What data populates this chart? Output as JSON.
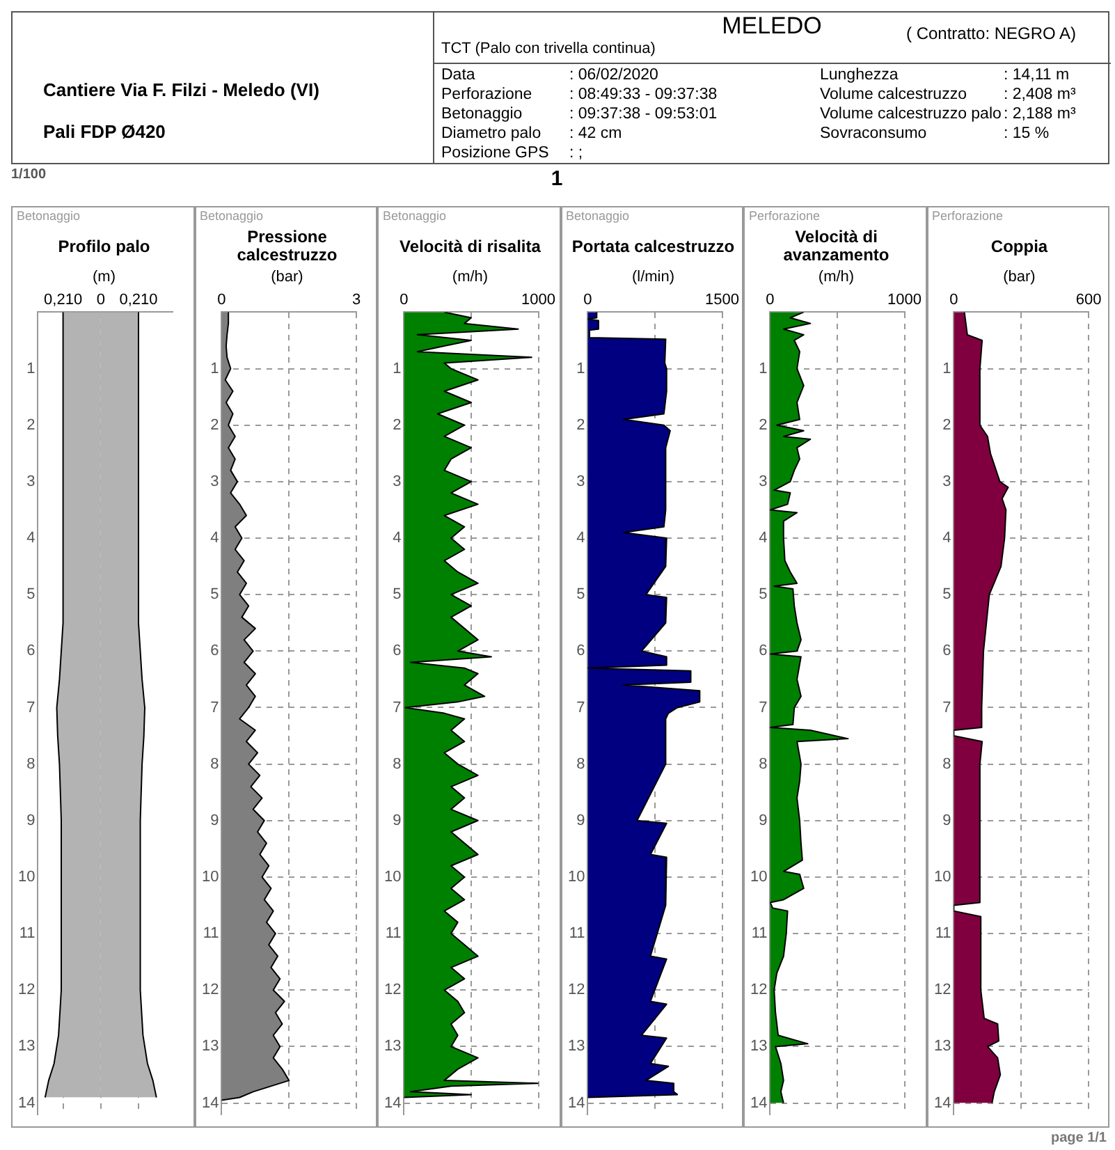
{
  "chart_data": [
    {
      "type": "other",
      "title": "MELEDO",
      "subtitle": "TCT (Palo con trivella continua)",
      "annotations": [
        "Cantiere Via F. Filzi - Meledo (VI)",
        "Pali FDP Ø420",
        "( Contratto: NEGRO A)",
        "Data",
        ": 06/02/2020",
        "Perforazione",
        ": 08:49:33 - 09:37:38",
        "Betonaggio",
        ": 09:37:38 - 09:53:01",
        "Diametro palo",
        ": 42 cm",
        "Posizione GPS",
        ": ;",
        "Lunghezza",
        ": 14,11 m",
        "Volume calcestruzzo",
        ": 2,408 m³",
        "Volume calcestruzzo palo",
        ": 2,188 m³",
        "Sovraconsumo",
        ": 15 %",
        "1/100",
        "1",
        "page 1/1"
      ]
    },
    {
      "type": "area",
      "orientation": "horizontal",
      "subtitle": "Betonaggio",
      "title": "Profilo palo",
      "xlabel": "(m)",
      "xlim": [
        -0.35,
        0.4
      ],
      "xticks": [
        {
          "value": -0.21,
          "label": "0,210"
        },
        0,
        {
          "value": 0.21,
          "label": "0,210"
        }
      ],
      "ylim": [
        14.2,
        0
      ],
      "yticks": [
        1,
        2,
        3,
        4,
        5,
        6,
        7,
        8,
        9,
        10,
        11,
        12,
        13,
        14
      ],
      "grid": "x",
      "series": [
        {
          "color": "#b3b3b3",
          "x": [
            0,
            5.5,
            6.5,
            7,
            7.5,
            8,
            9,
            12,
            12.8,
            13.3,
            13.6,
            13.9
          ],
          "values": [
            -0.21,
            -0.21,
            -0.23,
            -0.245,
            -0.24,
            -0.23,
            -0.22,
            -0.22,
            -0.235,
            -0.26,
            -0.29,
            -0.31
          ]
        },
        {
          "color": "#b3b3b3",
          "x": [
            0,
            5.5,
            6.5,
            7,
            7.5,
            8,
            9,
            12,
            12.8,
            13.3,
            13.6,
            13.9
          ],
          "values": [
            0.21,
            0.21,
            0.23,
            0.245,
            0.24,
            0.23,
            0.22,
            0.22,
            0.235,
            0.26,
            0.29,
            0.31
          ]
        }
      ]
    },
    {
      "type": "area",
      "orientation": "horizontal",
      "subtitle": "Betonaggio",
      "title": "Pressione calcestruzzo",
      "xlabel": "(bar)",
      "xlim": [
        0,
        3
      ],
      "xticks": [
        0,
        {
          "value": 1.5,
          "label": null
        },
        3
      ],
      "ylim": [
        14.2,
        0
      ],
      "yticks": [
        1,
        2,
        3,
        4,
        5,
        6,
        7,
        8,
        9,
        10,
        11,
        12,
        13,
        14
      ],
      "grid": true,
      "series": [
        {
          "color": "#7f7f7f",
          "x": [
            0,
            0.2,
            0.4,
            0.6,
            0.8,
            1,
            1.2,
            1.4,
            1.6,
            1.8,
            2,
            2.2,
            2.4,
            2.6,
            2.8,
            3,
            3.2,
            3.4,
            3.6,
            3.8,
            4,
            4.2,
            4.4,
            4.6,
            4.8,
            5,
            5.2,
            5.4,
            5.6,
            5.8,
            6,
            6.2,
            6.4,
            6.6,
            6.8,
            7,
            7.2,
            7.4,
            7.6,
            7.8,
            8,
            8.2,
            8.4,
            8.6,
            8.8,
            9,
            9.2,
            9.4,
            9.6,
            9.8,
            10,
            10.2,
            10.4,
            10.6,
            10.8,
            11,
            11.2,
            11.4,
            11.6,
            11.8,
            12,
            12.2,
            12.4,
            12.6,
            12.8,
            13,
            13.2,
            13.4,
            13.6,
            13.8,
            13.9,
            13.95
          ],
          "values": [
            0.15,
            0.15,
            0.12,
            0.1,
            0.12,
            0.2,
            0.08,
            0.25,
            0.1,
            0.25,
            0.15,
            0.3,
            0.15,
            0.3,
            0.2,
            0.35,
            0.2,
            0.4,
            0.55,
            0.3,
            0.45,
            0.3,
            0.5,
            0.35,
            0.55,
            0.4,
            0.6,
            0.45,
            0.75,
            0.5,
            0.7,
            0.5,
            0.75,
            0.55,
            0.75,
            0.6,
            0.4,
            0.75,
            0.55,
            0.8,
            0.6,
            0.85,
            0.65,
            0.9,
            0.7,
            0.95,
            0.8,
            1,
            0.85,
            1.05,
            0.9,
            1.1,
            0.95,
            1.15,
            1,
            1.2,
            1.05,
            1.25,
            1.1,
            1.3,
            1.15,
            1.4,
            1.2,
            1.35,
            1.15,
            1.3,
            1.15,
            1.35,
            1.5,
            0.7,
            0.4,
            0
          ]
        }
      ]
    },
    {
      "type": "area",
      "orientation": "horizontal",
      "subtitle": "Betonaggio",
      "title": "Velocità di risalita",
      "xlabel": "(m/h)",
      "xlim": [
        0,
        1000
      ],
      "xticks": [
        0,
        {
          "value": 500,
          "label": null
        },
        1000
      ],
      "ylim": [
        14.2,
        0
      ],
      "yticks": [
        1,
        2,
        3,
        4,
        5,
        6,
        7,
        8,
        9,
        10,
        11,
        12,
        13,
        14
      ],
      "grid": true,
      "series": [
        {
          "color": "#008000",
          "x": [
            0,
            0.1,
            0.2,
            0.3,
            0.4,
            0.5,
            0.6,
            0.7,
            0.8,
            0.9,
            1,
            1.2,
            1.4,
            1.6,
            1.8,
            2,
            2.2,
            2.4,
            2.6,
            2.8,
            3,
            3.2,
            3.4,
            3.6,
            3.8,
            4,
            4.2,
            4.4,
            4.6,
            4.8,
            5,
            5.2,
            5.4,
            5.6,
            5.8,
            6,
            6.1,
            6.2,
            6.3,
            6.4,
            6.6,
            6.8,
            6.9,
            7,
            7.1,
            7.2,
            7.4,
            7.6,
            7.8,
            8,
            8.2,
            8.4,
            8.6,
            8.8,
            9,
            9.2,
            9.4,
            9.6,
            9.8,
            10,
            10.2,
            10.4,
            10.6,
            10.8,
            11,
            11.2,
            11.4,
            11.6,
            11.8,
            12,
            12.2,
            12.4,
            12.6,
            12.8,
            13,
            13.2,
            13.4,
            13.6,
            13.65,
            13.7,
            13.8,
            13.85,
            13.9
          ],
          "values": [
            300,
            500,
            450,
            850,
            100,
            500,
            300,
            100,
            950,
            300,
            350,
            550,
            300,
            500,
            250,
            450,
            300,
            500,
            350,
            300,
            500,
            350,
            550,
            300,
            450,
            350,
            450,
            300,
            400,
            550,
            350,
            500,
            350,
            450,
            550,
            400,
            650,
            50,
            450,
            550,
            450,
            600,
            400,
            10,
            300,
            450,
            350,
            450,
            300,
            400,
            550,
            350,
            450,
            350,
            550,
            350,
            450,
            550,
            350,
            450,
            350,
            450,
            300,
            400,
            350,
            450,
            550,
            350,
            450,
            300,
            400,
            450,
            350,
            400,
            350,
            550,
            400,
            300,
            1000,
            350,
            50,
            500,
            0
          ]
        }
      ]
    },
    {
      "type": "area",
      "orientation": "horizontal",
      "subtitle": "Betonaggio",
      "title": "Portata calcestruzzo",
      "xlabel": "(l/min)",
      "xlim": [
        0,
        1500
      ],
      "xticks": [
        0,
        {
          "value": 750,
          "label": null
        },
        1500
      ],
      "ylim": [
        14.2,
        0
      ],
      "yticks": [
        1,
        2,
        3,
        4,
        5,
        6,
        7,
        8,
        9,
        10,
        11,
        12,
        13,
        14
      ],
      "grid": true,
      "series": [
        {
          "color": "#000080",
          "x": [
            0,
            0.1,
            0.12,
            0.15,
            0.3,
            0.32,
            0.45,
            0.48,
            0.9,
            1,
            1.4,
            1.8,
            1.9,
            2,
            2.1,
            2.4,
            3,
            3.5,
            3.8,
            3.9,
            4,
            4.5,
            5,
            5.05,
            5.5,
            6,
            6.1,
            6.25,
            6.3,
            6.35,
            6.55,
            6.6,
            6.7,
            6.9,
            7,
            7.1,
            7.2,
            8,
            9,
            9.05,
            9.6,
            9.65,
            10.5,
            11.4,
            11.45,
            12.2,
            12.25,
            12.8,
            12.85,
            13.3,
            13.35,
            13.6,
            13.65,
            13.8,
            13.85,
            13.9
          ],
          "values": [
            100,
            100,
            0,
            120,
            120,
            20,
            20,
            870,
            860,
            880,
            880,
            850,
            400,
            850,
            920,
            870,
            870,
            870,
            850,
            400,
            880,
            870,
            650,
            880,
            870,
            600,
            880,
            880,
            0,
            1150,
            1150,
            400,
            1250,
            1250,
            1000,
            900,
            870,
            870,
            550,
            880,
            700,
            880,
            870,
            700,
            880,
            700,
            880,
            600,
            880,
            700,
            900,
            650,
            960,
            960,
            1000,
            0
          ]
        }
      ]
    },
    {
      "type": "area",
      "orientation": "horizontal",
      "subtitle": "Perforazione",
      "title": "Velocità di avanzamento",
      "xlabel": "(m/h)",
      "xlim": [
        0,
        1000
      ],
      "xticks": [
        0,
        {
          "value": 500,
          "label": null
        },
        1000
      ],
      "ylim": [
        14.2,
        0
      ],
      "yticks": [
        1,
        2,
        3,
        4,
        5,
        6,
        7,
        8,
        9,
        10,
        11,
        12,
        13,
        14
      ],
      "grid": true,
      "series": [
        {
          "color": "#008000",
          "x": [
            0,
            0.1,
            0.2,
            0.3,
            0.4,
            0.5,
            0.7,
            1,
            1.3,
            1.6,
            1.9,
            2,
            2.1,
            2.2,
            2.25,
            2.4,
            2.6,
            2.8,
            3,
            3.15,
            3.2,
            3.4,
            3.5,
            3.55,
            3.7,
            4,
            4.4,
            4.6,
            4.8,
            4.85,
            4.9,
            5.2,
            5.5,
            5.8,
            6,
            6.05,
            6.1,
            6.5,
            6.8,
            7,
            7.3,
            7.35,
            7.4,
            7.55,
            7.6,
            8,
            8.3,
            8.6,
            9,
            9.4,
            9.7,
            9.9,
            9.95,
            10.2,
            10.4,
            10.45,
            10.55,
            10.6,
            11,
            11.4,
            11.7,
            12,
            12.4,
            12.8,
            12.95,
            13,
            13.3,
            13.6,
            13.8,
            14
          ],
          "values": [
            250,
            150,
            300,
            100,
            250,
            180,
            220,
            200,
            250,
            200,
            220,
            50,
            250,
            100,
            300,
            200,
            220,
            180,
            150,
            30,
            150,
            130,
            0,
            200,
            100,
            100,
            110,
            150,
            200,
            30,
            170,
            180,
            200,
            230,
            200,
            0,
            230,
            200,
            230,
            180,
            170,
            0,
            300,
            580,
            200,
            230,
            220,
            200,
            220,
            230,
            240,
            100,
            220,
            250,
            100,
            0,
            20,
            130,
            120,
            100,
            50,
            30,
            40,
            60,
            280,
            40,
            80,
            100,
            80,
            100
          ]
        }
      ]
    },
    {
      "type": "area",
      "orientation": "horizontal",
      "subtitle": "Perforazione",
      "title": "Coppia",
      "xlabel": "(bar)",
      "xlim": [
        0,
        600
      ],
      "xticks": [
        0,
        {
          "value": 300,
          "label": null
        },
        600
      ],
      "ylim": [
        14.2,
        0
      ],
      "yticks": [
        1,
        2,
        3,
        4,
        5,
        6,
        7,
        8,
        9,
        10,
        11,
        12,
        13,
        14
      ],
      "grid": true,
      "series": [
        {
          "color": "#80003f",
          "x": [
            0,
            0.4,
            0.5,
            1,
            2,
            2.2,
            2.5,
            3,
            3.1,
            3.3,
            3.5,
            4,
            4.5,
            5,
            6,
            7,
            7.35,
            7.4,
            7.5,
            7.6,
            8,
            10,
            10.45,
            10.5,
            10.6,
            10.7,
            12,
            12.5,
            12.6,
            12.9,
            13,
            13.2,
            13.5,
            13.8,
            14
          ],
          "values": [
            47,
            60,
            126,
            116,
            116,
            150,
            163,
            205,
            242,
            215,
            232,
            226,
            210,
            158,
            132,
            124,
            124,
            0,
            0,
            126,
            116,
            116,
            116,
            0,
            0,
            120,
            120,
            135,
            195,
            200,
            150,
            195,
            207,
            180,
            170
          ]
        }
      ]
    }
  ]
}
